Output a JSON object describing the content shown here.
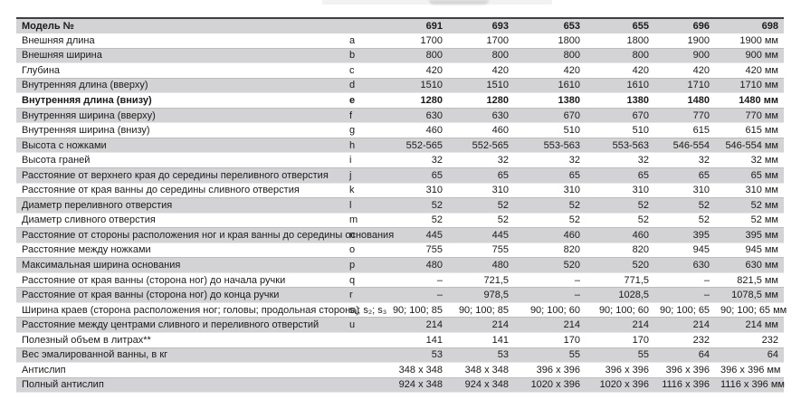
{
  "page": {
    "background": "#ffffff",
    "colors": {
      "row_alt_background": "#d3d3d5",
      "row_alt_border": "#bdbdbd",
      "table_top_border": "#3f3f3f",
      "text": "#1a1a1a"
    }
  },
  "table": {
    "header": {
      "label": "Модель №",
      "letter": "",
      "models": [
        "691",
        "693",
        "653",
        "655",
        "696",
        "698"
      ]
    },
    "rows": [
      {
        "label": "Внешняя длина",
        "letter": "a",
        "bold": false,
        "values": [
          "1700",
          "1700",
          "1800",
          "1800",
          "1900",
          "1900 мм"
        ]
      },
      {
        "label": "Внешняя ширина",
        "letter": "b",
        "bold": false,
        "values": [
          "800",
          "800",
          "800",
          "800",
          "900",
          "900 мм"
        ]
      },
      {
        "label": "Глубина",
        "letter": "c",
        "bold": false,
        "values": [
          "420",
          "420",
          "420",
          "420",
          "420",
          "420 мм"
        ]
      },
      {
        "label": "Внутренняя длина (вверху)",
        "letter": "d",
        "bold": false,
        "values": [
          "1510",
          "1510",
          "1610",
          "1610",
          "1710",
          "1710 мм"
        ]
      },
      {
        "label": "Внутренняя длина (внизу)",
        "letter": "e",
        "bold": true,
        "values": [
          "1280",
          "1280",
          "1380",
          "1380",
          "1480",
          "1480 мм"
        ]
      },
      {
        "label": "Внутренняя ширина (вверху)",
        "letter": "f",
        "bold": false,
        "values": [
          "630",
          "630",
          "670",
          "670",
          "770",
          "770 мм"
        ]
      },
      {
        "label": "Внутренняя ширина (внизу)",
        "letter": "g",
        "bold": false,
        "values": [
          "460",
          "460",
          "510",
          "510",
          "615",
          "615 мм"
        ]
      },
      {
        "label": "Высота с ножками",
        "letter": "h",
        "bold": false,
        "values": [
          "552-565",
          "552-565",
          "553-563",
          "553-563",
          "546-554",
          "546-554 мм"
        ]
      },
      {
        "label": "Высота граней",
        "letter": "i",
        "bold": false,
        "values": [
          "32",
          "32",
          "32",
          "32",
          "32",
          "32 мм"
        ]
      },
      {
        "label": "Расстояние от верхнего края до середины переливного отверстия",
        "letter": "j",
        "bold": false,
        "values": [
          "65",
          "65",
          "65",
          "65",
          "65",
          "65 мм"
        ]
      },
      {
        "label": "Расстояние от края ванны до середины сливного отверстия",
        "letter": "k",
        "bold": false,
        "values": [
          "310",
          "310",
          "310",
          "310",
          "310",
          "310 мм"
        ]
      },
      {
        "label": "Диаметр переливного отверстия",
        "letter": "l",
        "bold": false,
        "values": [
          "52",
          "52",
          "52",
          "52",
          "52",
          "52 мм"
        ]
      },
      {
        "label": "Диаметр сливного отверстия",
        "letter": "m",
        "bold": false,
        "values": [
          "52",
          "52",
          "52",
          "52",
          "52",
          "52 мм"
        ]
      },
      {
        "label": "Расстояние от стороны расположения ног и края ванны до середины основания",
        "letter": "n",
        "bold": false,
        "values": [
          "445",
          "445",
          "460",
          "460",
          "395",
          "395 мм"
        ]
      },
      {
        "label": "Расстояние между ножками",
        "letter": "o",
        "bold": false,
        "values": [
          "755",
          "755",
          "820",
          "820",
          "945",
          "945 мм"
        ]
      },
      {
        "label": "Максимальная ширина основания",
        "letter": "p",
        "bold": false,
        "values": [
          "480",
          "480",
          "520",
          "520",
          "630",
          "630 мм"
        ]
      },
      {
        "label": "Расстояние от края ванны (сторона ног) до начала ручки",
        "letter": "q",
        "bold": false,
        "values": [
          "–",
          "721,5",
          "–",
          "771,5",
          "–",
          "821,5 мм"
        ]
      },
      {
        "label": "Расстояние от края ванны (сторона ног) до конца ручки",
        "letter": "r",
        "bold": false,
        "values": [
          "–",
          "978,5",
          "–",
          "1028,5",
          "–",
          "1078,5 мм"
        ]
      },
      {
        "label": "Ширина краев (сторона расположения ног; головы; продольная сторона)",
        "letter": "s₁; s₂; s₃",
        "bold": false,
        "values": [
          "90; 100; 85",
          "90; 100; 85",
          "90; 100; 60",
          "90; 100; 60",
          "90; 100; 65",
          "90; 100; 65 мм"
        ]
      },
      {
        "label": "Расстояние между центрами сливного и переливного отверстий",
        "letter": "u",
        "bold": false,
        "values": [
          "214",
          "214",
          "214",
          "214",
          "214",
          "214 мм"
        ]
      },
      {
        "label": "Полезный объем в литрах**",
        "letter": "",
        "bold": false,
        "values": [
          "141",
          "141",
          "170",
          "170",
          "232",
          "232"
        ]
      },
      {
        "label": "Вес эмалированной ванны, в кг",
        "letter": "",
        "bold": false,
        "values": [
          "53",
          "53",
          "55",
          "55",
          "64",
          "64"
        ]
      },
      {
        "label": "Антислип",
        "letter": "",
        "bold": false,
        "values": [
          "348 x 348",
          "348 x 348",
          "396 x 396",
          "396 x 396",
          "396 x 396",
          "396 x 396 мм"
        ]
      },
      {
        "label": "Полный антислип",
        "letter": "",
        "bold": false,
        "values": [
          "924 x 348",
          "924 x 348",
          "1020 x 396",
          "1020 x 396",
          "1116 x 396",
          "1116 x 396 мм"
        ]
      }
    ]
  }
}
